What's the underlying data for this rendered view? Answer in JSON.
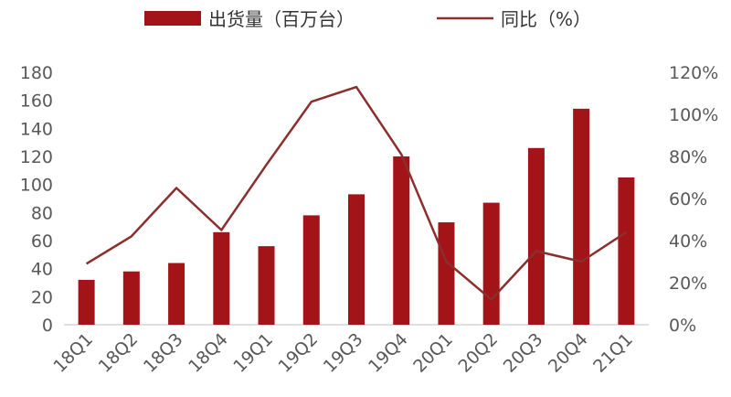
{
  "chart_data": {
    "type": "bar",
    "categories": [
      "18Q1",
      "18Q2",
      "18Q3",
      "18Q4",
      "19Q1",
      "19Q2",
      "19Q3",
      "19Q4",
      "20Q1",
      "20Q2",
      "20Q3",
      "20Q4",
      "21Q1"
    ],
    "series": [
      {
        "name": "出货量（百万台）",
        "type": "bar",
        "axis": "left",
        "color": "#A31419",
        "values": [
          32,
          38,
          44,
          66,
          56,
          78,
          93,
          120,
          73,
          87,
          126,
          154,
          105
        ]
      },
      {
        "name": "同比（%）",
        "type": "line",
        "axis": "right",
        "color": "#8B2E2E",
        "values": [
          29,
          42,
          65,
          45,
          76,
          106,
          113,
          81,
          30,
          12,
          35,
          30,
          44
        ]
      }
    ],
    "y_left": {
      "min": 0,
      "max": 180,
      "step": 20
    },
    "y_right": {
      "min": 0,
      "max": 120,
      "step": 20,
      "unit": "%"
    },
    "legend_position": "top",
    "grid": false
  }
}
